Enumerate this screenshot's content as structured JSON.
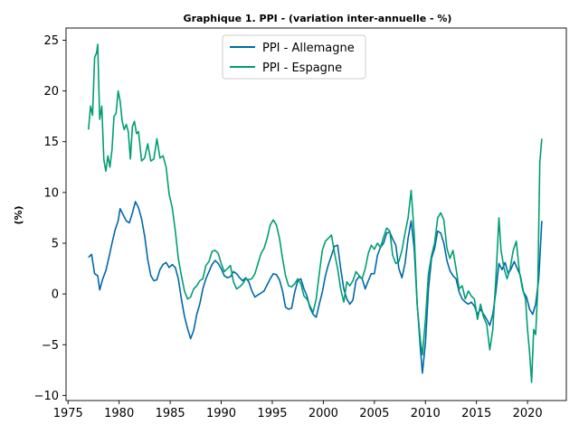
{
  "chart_data": {
    "type": "line",
    "title": "Graphique 1. PPI  - (variation inter-annuelle - %)",
    "xlabel": "",
    "ylabel": "(%)",
    "xlim": [
      1974.8,
      2023.8
    ],
    "ylim": [
      -10.5,
      26.2
    ],
    "xticks": [
      1975,
      1980,
      1985,
      1990,
      1995,
      2000,
      2005,
      2010,
      2015,
      2020
    ],
    "yticks": [
      -10,
      -5,
      0,
      5,
      10,
      15,
      20,
      25
    ],
    "grid": false,
    "legend_position": "top-center",
    "series": [
      {
        "name": "PPI - Allemagne",
        "color": "#0068a8",
        "points": [
          [
            1977.0,
            3.6
          ],
          [
            1977.3,
            3.9
          ],
          [
            1977.6,
            2.0
          ],
          [
            1977.9,
            1.8
          ],
          [
            1978.1,
            0.4
          ],
          [
            1978.4,
            1.5
          ],
          [
            1978.7,
            2.3
          ],
          [
            1979.0,
            3.6
          ],
          [
            1979.3,
            5.0
          ],
          [
            1979.6,
            6.3
          ],
          [
            1979.9,
            7.2
          ],
          [
            1980.1,
            8.4
          ],
          [
            1980.4,
            7.8
          ],
          [
            1980.7,
            7.2
          ],
          [
            1981.0,
            7.0
          ],
          [
            1981.3,
            8.0
          ],
          [
            1981.6,
            9.1
          ],
          [
            1981.9,
            8.5
          ],
          [
            1982.2,
            7.4
          ],
          [
            1982.5,
            5.7
          ],
          [
            1982.8,
            3.4
          ],
          [
            1983.1,
            1.8
          ],
          [
            1983.4,
            1.3
          ],
          [
            1983.7,
            1.4
          ],
          [
            1984.0,
            2.4
          ],
          [
            1984.3,
            2.9
          ],
          [
            1984.6,
            3.1
          ],
          [
            1984.9,
            2.6
          ],
          [
            1985.2,
            2.9
          ],
          [
            1985.5,
            2.6
          ],
          [
            1985.8,
            1.5
          ],
          [
            1986.1,
            -0.5
          ],
          [
            1986.4,
            -2.2
          ],
          [
            1986.7,
            -3.4
          ],
          [
            1987.0,
            -4.4
          ],
          [
            1987.3,
            -3.6
          ],
          [
            1987.6,
            -2.0
          ],
          [
            1987.9,
            -1.0
          ],
          [
            1988.2,
            0.5
          ],
          [
            1988.5,
            1.5
          ],
          [
            1988.8,
            2.2
          ],
          [
            1989.1,
            2.9
          ],
          [
            1989.4,
            3.3
          ],
          [
            1989.7,
            3.0
          ],
          [
            1990.0,
            2.5
          ],
          [
            1990.3,
            1.8
          ],
          [
            1990.6,
            1.6
          ],
          [
            1990.9,
            1.7
          ],
          [
            1991.2,
            2.2
          ],
          [
            1991.5,
            2.0
          ],
          [
            1991.8,
            1.6
          ],
          [
            1992.1,
            1.3
          ],
          [
            1992.4,
            1.6
          ],
          [
            1992.7,
            1.2
          ],
          [
            1993.0,
            0.3
          ],
          [
            1993.3,
            -0.3
          ],
          [
            1993.6,
            -0.1
          ],
          [
            1993.9,
            0.1
          ],
          [
            1994.2,
            0.3
          ],
          [
            1994.5,
            0.9
          ],
          [
            1994.8,
            1.5
          ],
          [
            1995.1,
            2.0
          ],
          [
            1995.4,
            1.9
          ],
          [
            1995.7,
            1.4
          ],
          [
            1996.0,
            0.3
          ],
          [
            1996.3,
            -1.3
          ],
          [
            1996.6,
            -1.5
          ],
          [
            1996.9,
            -1.4
          ],
          [
            1997.2,
            0.2
          ],
          [
            1997.5,
            1.3
          ],
          [
            1997.8,
            1.5
          ],
          [
            1998.1,
            0.5
          ],
          [
            1998.4,
            -0.2
          ],
          [
            1998.7,
            -1.4
          ],
          [
            1999.0,
            -2.0
          ],
          [
            1999.3,
            -2.3
          ],
          [
            1999.6,
            -1.0
          ],
          [
            1999.9,
            0.2
          ],
          [
            2000.2,
            1.8
          ],
          [
            2000.5,
            2.9
          ],
          [
            2000.8,
            3.8
          ],
          [
            2001.1,
            4.7
          ],
          [
            2001.4,
            4.8
          ],
          [
            2001.7,
            2.5
          ],
          [
            2002.0,
            0.5
          ],
          [
            2002.3,
            -0.5
          ],
          [
            2002.6,
            -1.0
          ],
          [
            2002.9,
            -0.6
          ],
          [
            2003.2,
            1.3
          ],
          [
            2003.5,
            1.7
          ],
          [
            2003.8,
            1.5
          ],
          [
            2004.1,
            0.5
          ],
          [
            2004.4,
            1.3
          ],
          [
            2004.7,
            2.0
          ],
          [
            2005.0,
            2.0
          ],
          [
            2005.3,
            3.8
          ],
          [
            2005.6,
            4.6
          ],
          [
            2005.9,
            5.0
          ],
          [
            2006.2,
            6.0
          ],
          [
            2006.5,
            6.1
          ],
          [
            2006.8,
            5.4
          ],
          [
            2007.1,
            4.8
          ],
          [
            2007.4,
            2.5
          ],
          [
            2007.7,
            1.6
          ],
          [
            2008.0,
            3.0
          ],
          [
            2008.3,
            5.5
          ],
          [
            2008.6,
            7.2
          ],
          [
            2008.9,
            4.5
          ],
          [
            2009.2,
            -1.0
          ],
          [
            2009.5,
            -5.3
          ],
          [
            2009.7,
            -7.8
          ],
          [
            2010.0,
            -4.8
          ],
          [
            2010.3,
            0.5
          ],
          [
            2010.6,
            3.5
          ],
          [
            2010.9,
            4.5
          ],
          [
            2011.2,
            6.2
          ],
          [
            2011.5,
            6.0
          ],
          [
            2011.8,
            5.0
          ],
          [
            2012.1,
            3.3
          ],
          [
            2012.4,
            2.3
          ],
          [
            2012.7,
            1.8
          ],
          [
            2013.0,
            1.5
          ],
          [
            2013.3,
            0.2
          ],
          [
            2013.6,
            -0.5
          ],
          [
            2013.9,
            -0.8
          ],
          [
            2014.2,
            -1.0
          ],
          [
            2014.5,
            -0.8
          ],
          [
            2014.8,
            -1.2
          ],
          [
            2015.1,
            -2.0
          ],
          [
            2015.4,
            -1.5
          ],
          [
            2015.7,
            -2.0
          ],
          [
            2016.0,
            -2.5
          ],
          [
            2016.3,
            -3.1
          ],
          [
            2016.6,
            -2.0
          ],
          [
            2016.9,
            0.2
          ],
          [
            2017.2,
            3.0
          ],
          [
            2017.5,
            2.4
          ],
          [
            2017.8,
            3.1
          ],
          [
            2018.1,
            2.0
          ],
          [
            2018.4,
            2.5
          ],
          [
            2018.7,
            3.2
          ],
          [
            2019.0,
            2.5
          ],
          [
            2019.3,
            1.8
          ],
          [
            2019.6,
            0.2
          ],
          [
            2019.9,
            -0.3
          ],
          [
            2020.2,
            -1.5
          ],
          [
            2020.5,
            -2.0
          ],
          [
            2020.8,
            -1.0
          ],
          [
            2021.1,
            1.5
          ],
          [
            2021.4,
            7.2
          ]
        ]
      },
      {
        "name": "PPI - Espagne",
        "color": "#009e73",
        "points": [
          [
            1977.0,
            16.2
          ],
          [
            1977.2,
            18.5
          ],
          [
            1977.4,
            17.6
          ],
          [
            1977.6,
            23.3
          ],
          [
            1977.8,
            23.8
          ],
          [
            1977.9,
            24.6
          ],
          [
            1978.1,
            17.2
          ],
          [
            1978.3,
            18.5
          ],
          [
            1978.5,
            13.2
          ],
          [
            1978.7,
            12.1
          ],
          [
            1978.9,
            13.6
          ],
          [
            1979.1,
            12.5
          ],
          [
            1979.3,
            14.2
          ],
          [
            1979.5,
            17.5
          ],
          [
            1979.7,
            17.8
          ],
          [
            1979.9,
            20.0
          ],
          [
            1980.1,
            19.0
          ],
          [
            1980.3,
            17.0
          ],
          [
            1980.5,
            16.2
          ],
          [
            1980.7,
            16.7
          ],
          [
            1980.9,
            16.0
          ],
          [
            1981.1,
            13.3
          ],
          [
            1981.3,
            16.5
          ],
          [
            1981.5,
            17.0
          ],
          [
            1981.7,
            15.8
          ],
          [
            1981.9,
            16.0
          ],
          [
            1982.2,
            13.1
          ],
          [
            1982.5,
            13.4
          ],
          [
            1982.8,
            14.8
          ],
          [
            1983.1,
            13.1
          ],
          [
            1983.4,
            13.3
          ],
          [
            1983.7,
            15.3
          ],
          [
            1984.0,
            13.4
          ],
          [
            1984.3,
            13.6
          ],
          [
            1984.6,
            12.5
          ],
          [
            1984.9,
            9.8
          ],
          [
            1985.2,
            8.5
          ],
          [
            1985.5,
            6.2
          ],
          [
            1985.8,
            3.5
          ],
          [
            1986.1,
            1.8
          ],
          [
            1986.4,
            0.3
          ],
          [
            1986.7,
            -0.5
          ],
          [
            1987.0,
            -0.3
          ],
          [
            1987.3,
            0.5
          ],
          [
            1987.6,
            0.8
          ],
          [
            1987.9,
            1.3
          ],
          [
            1988.2,
            1.5
          ],
          [
            1988.5,
            2.8
          ],
          [
            1988.8,
            3.2
          ],
          [
            1989.1,
            4.2
          ],
          [
            1989.4,
            4.3
          ],
          [
            1989.7,
            4.0
          ],
          [
            1990.0,
            3.0
          ],
          [
            1990.3,
            2.2
          ],
          [
            1990.6,
            2.5
          ],
          [
            1990.9,
            2.8
          ],
          [
            1991.2,
            1.2
          ],
          [
            1991.5,
            0.5
          ],
          [
            1991.8,
            0.7
          ],
          [
            1992.1,
            1.0
          ],
          [
            1992.4,
            1.5
          ],
          [
            1992.7,
            1.4
          ],
          [
            1993.0,
            1.5
          ],
          [
            1993.3,
            2.0
          ],
          [
            1993.6,
            3.0
          ],
          [
            1993.9,
            4.0
          ],
          [
            1994.2,
            4.5
          ],
          [
            1994.5,
            5.5
          ],
          [
            1994.8,
            6.8
          ],
          [
            1995.1,
            7.3
          ],
          [
            1995.4,
            6.8
          ],
          [
            1995.7,
            5.5
          ],
          [
            1996.0,
            3.5
          ],
          [
            1996.3,
            1.8
          ],
          [
            1996.6,
            0.8
          ],
          [
            1996.9,
            0.7
          ],
          [
            1997.2,
            1.0
          ],
          [
            1997.5,
            1.5
          ],
          [
            1997.8,
            1.0
          ],
          [
            1998.1,
            -0.2
          ],
          [
            1998.4,
            -0.5
          ],
          [
            1998.7,
            -1.2
          ],
          [
            1999.0,
            -1.8
          ],
          [
            1999.3,
            -0.5
          ],
          [
            1999.6,
            2.0
          ],
          [
            1999.9,
            4.3
          ],
          [
            2000.2,
            5.2
          ],
          [
            2000.5,
            5.5
          ],
          [
            2000.8,
            5.8
          ],
          [
            2001.1,
            4.0
          ],
          [
            2001.4,
            2.5
          ],
          [
            2001.7,
            0.5
          ],
          [
            2002.0,
            -0.8
          ],
          [
            2002.3,
            1.2
          ],
          [
            2002.6,
            0.8
          ],
          [
            2002.9,
            1.3
          ],
          [
            2003.2,
            2.2
          ],
          [
            2003.5,
            1.8
          ],
          [
            2003.8,
            1.5
          ],
          [
            2004.1,
            2.5
          ],
          [
            2004.4,
            4.0
          ],
          [
            2004.7,
            4.8
          ],
          [
            2005.0,
            4.4
          ],
          [
            2005.3,
            5.0
          ],
          [
            2005.6,
            4.6
          ],
          [
            2005.9,
            5.6
          ],
          [
            2006.2,
            6.5
          ],
          [
            2006.5,
            6.2
          ],
          [
            2006.8,
            3.8
          ],
          [
            2007.1,
            3.0
          ],
          [
            2007.4,
            3.2
          ],
          [
            2007.7,
            4.3
          ],
          [
            2008.0,
            6.0
          ],
          [
            2008.3,
            7.5
          ],
          [
            2008.6,
            10.2
          ],
          [
            2008.9,
            6.0
          ],
          [
            2009.2,
            -1.2
          ],
          [
            2009.5,
            -4.5
          ],
          [
            2009.7,
            -6.0
          ],
          [
            2010.0,
            -2.5
          ],
          [
            2010.3,
            2.0
          ],
          [
            2010.6,
            3.8
          ],
          [
            2010.9,
            5.0
          ],
          [
            2011.2,
            7.5
          ],
          [
            2011.5,
            8.0
          ],
          [
            2011.8,
            7.3
          ],
          [
            2012.1,
            4.5
          ],
          [
            2012.4,
            3.5
          ],
          [
            2012.7,
            4.3
          ],
          [
            2013.0,
            2.5
          ],
          [
            2013.3,
            0.5
          ],
          [
            2013.6,
            0.8
          ],
          [
            2013.9,
            -0.5
          ],
          [
            2014.2,
            0.3
          ],
          [
            2014.5,
            -0.2
          ],
          [
            2014.8,
            -0.5
          ],
          [
            2015.1,
            -2.5
          ],
          [
            2015.4,
            -1.0
          ],
          [
            2015.7,
            -2.3
          ],
          [
            2016.0,
            -3.0
          ],
          [
            2016.3,
            -5.5
          ],
          [
            2016.6,
            -3.5
          ],
          [
            2016.9,
            1.5
          ],
          [
            2017.2,
            7.5
          ],
          [
            2017.4,
            4.3
          ],
          [
            2017.7,
            2.5
          ],
          [
            2018.0,
            1.5
          ],
          [
            2018.3,
            2.5
          ],
          [
            2018.6,
            4.3
          ],
          [
            2018.9,
            5.2
          ],
          [
            2019.2,
            2.2
          ],
          [
            2019.5,
            0.5
          ],
          [
            2019.8,
            -0.5
          ],
          [
            2020.0,
            -3.5
          ],
          [
            2020.2,
            -5.8
          ],
          [
            2020.4,
            -8.7
          ],
          [
            2020.6,
            -3.5
          ],
          [
            2020.8,
            -4.0
          ],
          [
            2021.0,
            0.5
          ],
          [
            2021.2,
            13.0
          ],
          [
            2021.4,
            15.3
          ]
        ]
      }
    ]
  }
}
